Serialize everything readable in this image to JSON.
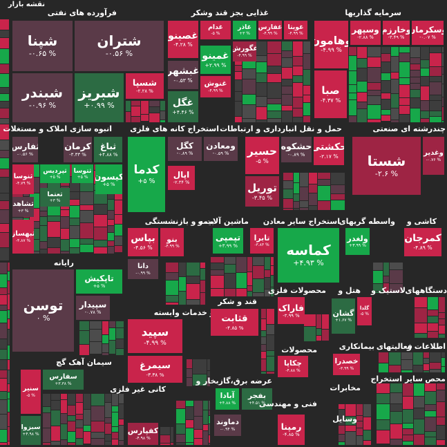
{
  "header": {
    "title": "نقشه بازار"
  },
  "sectors": [
    {
      "name": "فرآورده های نفتی",
      "tiles": [
        {
          "label": "شپنا",
          "change": "-۰.۶۵ %"
        },
        {
          "label": "شتران",
          "change": "-۰.۵۶ %"
        },
        {
          "label": "شبندر",
          "change": "-۰.۹۶ %"
        },
        {
          "label": "شبریز",
          "change": "+۰.۹۹ %"
        },
        {
          "label": "شسپا",
          "change": "-۲.۲۸ %"
        }
      ]
    },
    {
      "name": "غذایی بجز قند وشکر",
      "tiles": [
        {
          "label": "غصینو",
          "change": "-۴.۲۸ %"
        },
        {
          "label": "غدام",
          "change": "-۵ %"
        },
        {
          "label": "غاذر",
          "change": "+۳ %"
        },
        {
          "label": "غفارس",
          "change": "-۴.۹۹ %"
        },
        {
          "label": "غویتا",
          "change": "-۴.۹۹ %"
        },
        {
          "label": "غمینو",
          "change": "+۲.۹۹ %"
        },
        {
          "label": "غگورش",
          "change": "-۴.۹۹ %"
        },
        {
          "label": "غبشهر",
          "change": "-۰.۵۳ %"
        },
        {
          "label": "غنوش",
          "change": "-۴.۹۹ %"
        },
        {
          "label": "غگل",
          "change": "+۴.۴۶ %"
        }
      ]
    },
    {
      "name": "سرمایه گذاریها",
      "tiles": [
        {
          "label": "وهامون",
          "change": "-۴.۹۹ %"
        },
        {
          "label": "وسپهر",
          "change": "-۲.۸۸ %"
        },
        {
          "label": "وخارزم",
          "change": "-۳.۴۹ %"
        },
        {
          "label": "وسکرمان",
          "change": "-۰.۰۷ %"
        },
        {
          "label": "صبا",
          "change": "-۴.۳۷ %"
        }
      ]
    },
    {
      "name": "انبوه سازی املاک و مستغلات",
      "tiles": [
        {
          "label": "ثفارس",
          "change": "-۰.۵۶ %"
        },
        {
          "label": "کرمان",
          "change": "-۳.۳۳ %"
        },
        {
          "label": "ثباغ",
          "change": "+۴.۸۸ %"
        },
        {
          "label": "ثنوسا",
          "change": "-۴.۷۹ %"
        },
        {
          "label": "ثپردیس",
          "change": "+۵ %"
        },
        {
          "label": "ثتوسا",
          "change": "+۵ %"
        },
        {
          "label": "کیسون",
          "change": "+۵ %"
        },
        {
          "label": "ثعتما",
          "change": "+۳ %"
        },
        {
          "label": "ثشاهد",
          "change": "+۳ %"
        },
        {
          "label": "ثبهساز",
          "change": "-۴.۸۷ %"
        }
      ]
    },
    {
      "name": "رایانه",
      "tiles": [
        {
          "label": "توسن",
          "change": "۰ %"
        },
        {
          "label": "تاپکیش",
          "change": "+۵ %"
        },
        {
          "label": "سپیدار",
          "change": "-۰.۷۸ %"
        }
      ]
    },
    {
      "name": "سیمان آهک گچ",
      "tiles": [
        {
          "label": "سنیر",
          "change": "-۵ %"
        },
        {
          "label": "سفارس",
          "change": "+۳.۳۸ %"
        },
        {
          "label": "سیزوا",
          "change": "+۴.۹۸ %"
        }
      ]
    },
    {
      "name": "استخراج کانه های فلزی",
      "tiles": [
        {
          "label": "کدما",
          "change": "+۵ %"
        },
        {
          "label": "کگل",
          "change": "-۰.۸۹ %"
        },
        {
          "label": "ومعادن",
          "change": "-۰.۵۹ %"
        },
        {
          "label": "اپال",
          "change": "-۲.۳۴ %"
        }
      ]
    },
    {
      "name": "حمل و نقل انبارداری و ارتباطات",
      "tiles": [
        {
          "label": "حسیر",
          "change": "-۵ %"
        },
        {
          "label": "حشکوه",
          "change": "-۰.۸۹ %"
        },
        {
          "label": "حکشتی",
          "change": "-۲.۱۷ %"
        },
        {
          "label": "توریل",
          "change": "-۳.۴۵ %"
        }
      ]
    },
    {
      "name": "چندرشته ای صنعتی",
      "tiles": [
        {
          "label": "شستا",
          "change": "-۲.۶ %"
        },
        {
          "label": "وغدیر",
          "change": "-۰.۷۶ %"
        }
      ]
    },
    {
      "name": "بیمه و بازنشستگی",
      "tiles": [
        {
          "label": "بپاس",
          "change": "-۴.۵۶ %"
        },
        {
          "label": "بنو",
          "change": "-۴.۹۹ %"
        },
        {
          "label": "دانا",
          "change": "-۰.۹۹ %"
        }
      ]
    },
    {
      "name": "ماشین آلات و",
      "tiles": [
        {
          "label": "تپمپی",
          "change": "+۳.۹۹ %"
        },
        {
          "label": "تابرا",
          "change": "-۳.۸۳ %"
        }
      ]
    },
    {
      "name": "استخراج سایر معادن",
      "tiles": [
        {
          "label": "کماسه",
          "change": "+۴.۹۳ %"
        }
      ]
    },
    {
      "name": "واسطه گریهای",
      "tiles": [
        {
          "label": "ولغدر",
          "change": "+۳.۹۹ %"
        }
      ]
    },
    {
      "name": "کاشی و",
      "tiles": [
        {
          "label": "کمرجان",
          "change": "-۴.۸۹ %"
        }
      ]
    },
    {
      "name": "محصولات فلزی",
      "tiles": [
        {
          "label": "فاراک",
          "change": "-۳.۹۹ %"
        }
      ]
    },
    {
      "name": "هتل و",
      "tiles": [
        {
          "label": "گشان",
          "change": "+۱.۶۷ %"
        }
      ]
    },
    {
      "name": "لاستیک و",
      "tiles": [
        {
          "label": "گلدا",
          "change": "-۵ %"
        }
      ]
    },
    {
      "name": "دستگاههای",
      "tiles": []
    },
    {
      "name": "زراعت و خدمات وابسته",
      "tiles": [
        {
          "label": "سپید",
          "change": "-۴.۹۹ %"
        },
        {
          "label": "سیمرغ",
          "change": "-۳.۳۸ %"
        }
      ]
    },
    {
      "name": "قند و شکر",
      "tiles": [
        {
          "label": "قثابت",
          "change": "-۴.۸۵ %"
        }
      ]
    },
    {
      "name": "محصولات",
      "tiles": [
        {
          "label": "چکاپا",
          "change": "-۴.۸۸ %"
        }
      ]
    },
    {
      "name": "بیمانکاری",
      "tiles": [
        {
          "label": "خصدرا",
          "change": "-۳.۹۹ %"
        }
      ]
    },
    {
      "name": "فعالیتهای",
      "tiles": []
    },
    {
      "name": "اطلاعات و",
      "tiles": []
    },
    {
      "name": "عرضه برق،گازبخار و",
      "tiles": [
        {
          "label": "آبادا",
          "change": "+۴.۸۸ %"
        },
        {
          "label": "بفجر",
          "change": "+۴.۵۱ %"
        },
        {
          "label": "دماوند",
          "change": "-۰.۹۴ %"
        }
      ]
    },
    {
      "name": "کانی غیر فلزی",
      "tiles": [
        {
          "label": "کفپارس",
          "change": "-۴.۹۸ %"
        }
      ]
    },
    {
      "name": "فنی و مهندسی",
      "tiles": [
        {
          "label": "رمپنا",
          "change": "-۴.۸۵ %"
        }
      ]
    },
    {
      "name": "مخابرات",
      "tiles": []
    },
    {
      "name": "وسایل",
      "tiles": []
    },
    {
      "name": "استخراج",
      "tiles": []
    },
    {
      "name": "سایر",
      "tiles": []
    },
    {
      "name": "محص",
      "tiles": []
    }
  ]
}
